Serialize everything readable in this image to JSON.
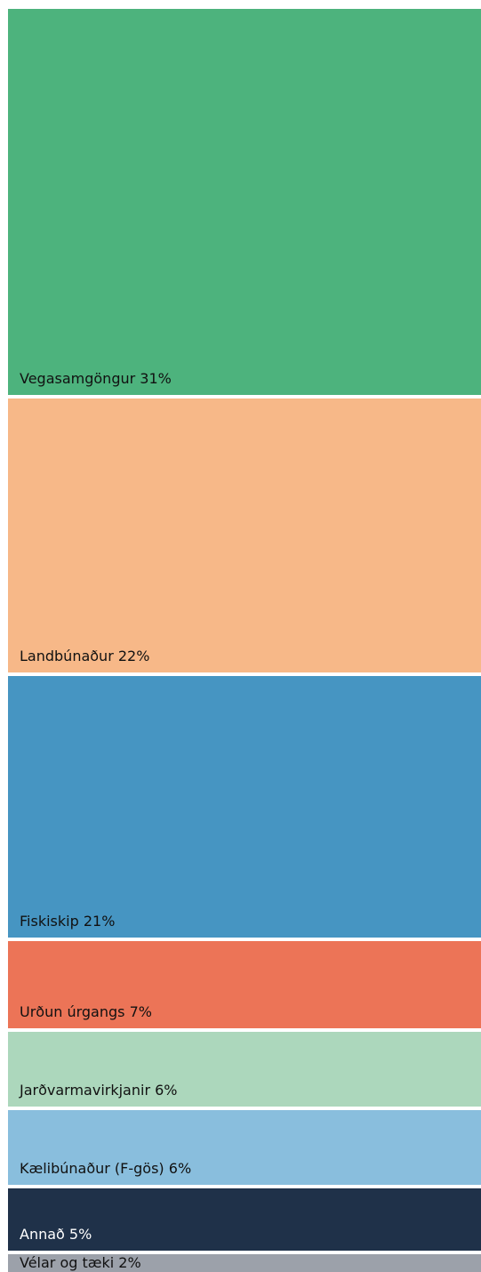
{
  "chart_data": {
    "type": "treemap",
    "categories": [
      "Vegasamgöngur",
      "Landbúnaður",
      "Fiskiskip",
      "Urðun úrgangs",
      "Jarðvarmavirkjanir",
      "Kælibúnaður (F-gös)",
      "Annað",
      "Vélar og tæki"
    ],
    "values": [
      31,
      22,
      21,
      7,
      6,
      6,
      5,
      2
    ],
    "value_labels": [
      "31%",
      "22%",
      "21%",
      "7%",
      "6%",
      "6%",
      "5%",
      "2%"
    ],
    "colors": [
      "#4db37d",
      "#f7b888",
      "#4695c2",
      "#ec7457",
      "#acd7bc",
      "#89bedd",
      "#1f3149",
      "#9ca1aa"
    ]
  }
}
